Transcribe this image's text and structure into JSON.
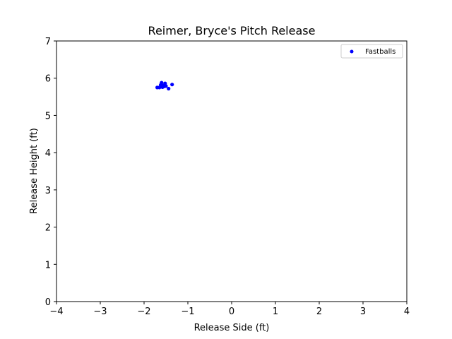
{
  "chart_data": {
    "type": "scatter",
    "title": "Reimer, Bryce's Pitch Release",
    "xlabel": "Release Side (ft)",
    "ylabel": "Release Height (ft)",
    "xlim": [
      -4,
      4
    ],
    "ylim": [
      0,
      7
    ],
    "xticks": [
      -4,
      -3,
      -2,
      -1,
      0,
      1,
      2,
      3,
      4
    ],
    "yticks": [
      0,
      1,
      2,
      3,
      4,
      5,
      6,
      7
    ],
    "grid": false,
    "legend_position": "top-right",
    "series": [
      {
        "name": "Fastballs",
        "color": "#0000ff",
        "points": [
          {
            "x": -1.7,
            "y": 5.75
          },
          {
            "x": -1.65,
            "y": 5.75
          },
          {
            "x": -1.62,
            "y": 5.82
          },
          {
            "x": -1.6,
            "y": 5.88
          },
          {
            "x": -1.58,
            "y": 5.76
          },
          {
            "x": -1.56,
            "y": 5.8
          },
          {
            "x": -1.54,
            "y": 5.78
          },
          {
            "x": -1.52,
            "y": 5.86
          },
          {
            "x": -1.5,
            "y": 5.79
          },
          {
            "x": -1.44,
            "y": 5.72
          },
          {
            "x": -1.36,
            "y": 5.83
          }
        ]
      }
    ]
  }
}
